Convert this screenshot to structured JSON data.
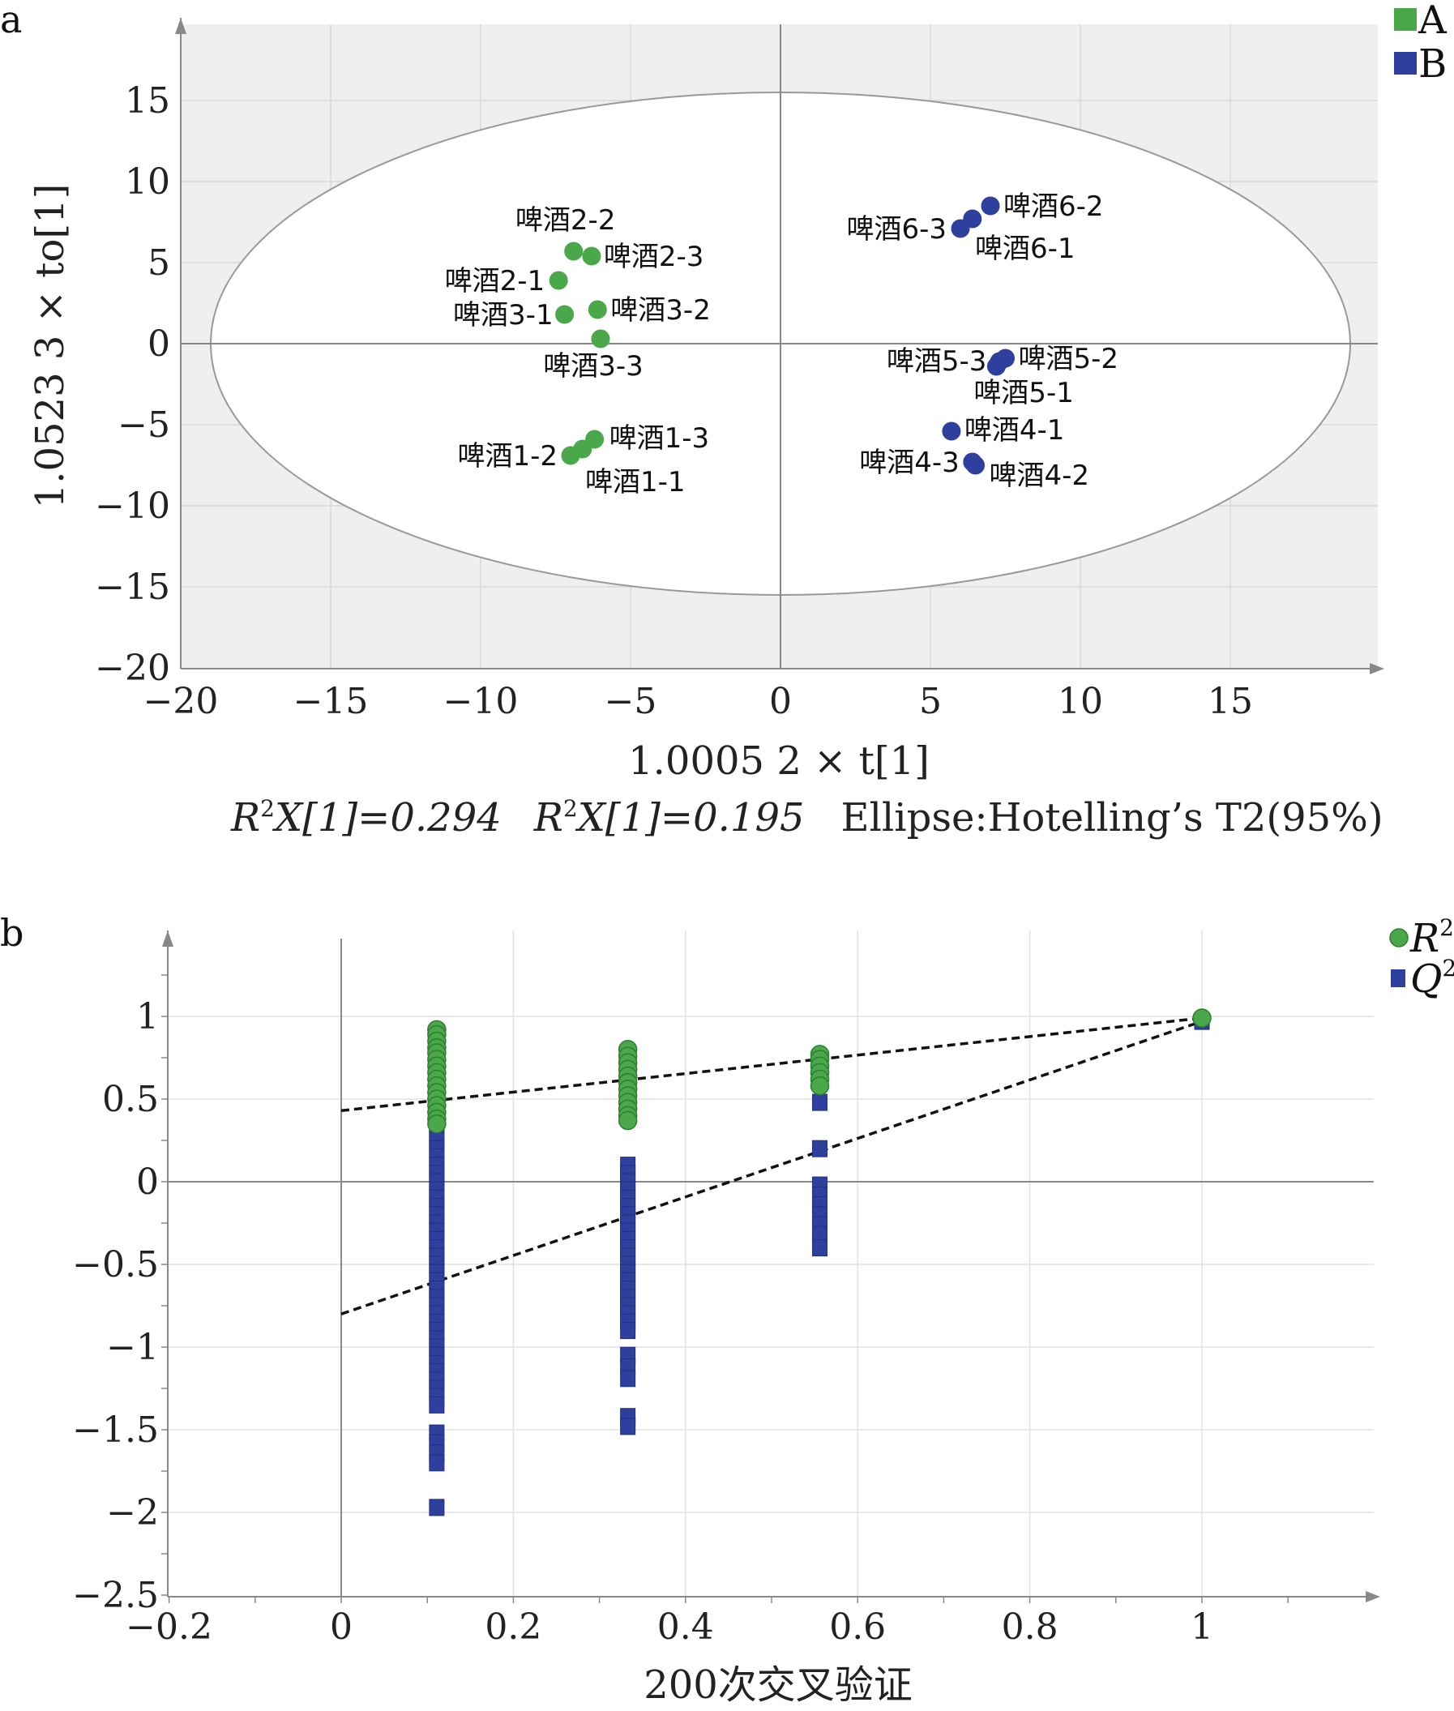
{
  "chart_data": [
    {
      "panel_label": "a",
      "type": "scatter",
      "xlabel": "1.0005 2 × t[1]",
      "ylabel": "1.0523 3 × to[1]",
      "footnote": {
        "r2x1_prefix": "R",
        "r2x1_sup": "2",
        "r2x1_rest": "X[1]=0.294",
        "r2x2_prefix": "R",
        "r2x2_sup": "2",
        "r2x2_rest": "X[1]=0.195",
        "ellipse": "Ellipse:Hotelling’s T2(95%)"
      },
      "xlim": [
        -20,
        20
      ],
      "ylim": [
        -20,
        20
      ],
      "xticks": [
        "−20",
        "−15",
        "−10",
        "−5",
        "0",
        "5",
        "10",
        "15"
      ],
      "yticks": [
        "15",
        "10",
        "5",
        "0",
        "−5",
        "−10",
        "−15",
        "−20"
      ],
      "grid": true,
      "legend_position": "top-right",
      "ellipse": {
        "center": [
          0,
          0
        ],
        "semi_axes": [
          19,
          15.5
        ],
        "label": "Hotelling's T2 (95%)"
      },
      "series": [
        {
          "name": "A",
          "color": "#4aa84a",
          "points": [
            {
              "label": "啤酒2-2",
              "x": -6.9,
              "y": 5.7
            },
            {
              "label": "啤酒2-3",
              "x": -6.3,
              "y": 5.4
            },
            {
              "label": "啤酒2-1",
              "x": -7.4,
              "y": 3.9
            },
            {
              "label": "啤酒3-1",
              "x": -7.2,
              "y": 1.8
            },
            {
              "label": "啤酒3-2",
              "x": -6.1,
              "y": 2.1
            },
            {
              "label": "啤酒3-3",
              "x": -6.0,
              "y": 0.3
            },
            {
              "label": "啤酒1-3",
              "x": -6.2,
              "y": -5.9
            },
            {
              "label": "啤酒1-2",
              "x": -7.0,
              "y": -6.9
            },
            {
              "label": "啤酒1-1",
              "x": -6.6,
              "y": -6.5
            }
          ]
        },
        {
          "name": "B",
          "color": "#2e3f9e",
          "points": [
            {
              "label": "啤酒6-2",
              "x": 7.0,
              "y": 8.5
            },
            {
              "label": "啤酒6-3",
              "x": 6.0,
              "y": 7.1
            },
            {
              "label": "啤酒6-1",
              "x": 6.4,
              "y": 7.7
            },
            {
              "label": "啤酒5-3",
              "x": 7.2,
              "y": -1.4
            },
            {
              "label": "啤酒5-2",
              "x": 7.5,
              "y": -0.9
            },
            {
              "label": "啤酒5-1",
              "x": 7.3,
              "y": -1.1
            },
            {
              "label": "啤酒4-1",
              "x": 5.7,
              "y": -5.4
            },
            {
              "label": "啤酒4-3",
              "x": 6.4,
              "y": -7.3
            },
            {
              "label": "啤酒4-2",
              "x": 6.5,
              "y": -7.5
            }
          ]
        }
      ]
    },
    {
      "panel_label": "b",
      "type": "scatter",
      "xlabel": "200次交叉验证",
      "ylabel": "",
      "xlim": [
        -0.2,
        1.2
      ],
      "ylim": [
        -2.5,
        1.5
      ],
      "xticks": [
        "−0.2",
        "0",
        "0.2",
        "0.4",
        "0.6",
        "0.8",
        "1"
      ],
      "yticks": [
        "1",
        "0.5",
        "0",
        "−0.5",
        "−1",
        "−1.5",
        "−2",
        "−2.5"
      ],
      "grid": true,
      "legend_position": "top-right",
      "legend": [
        {
          "symbol": "R",
          "sup": "2",
          "color": "#4aa84a",
          "marker": "circle"
        },
        {
          "symbol": "Q",
          "sup": "2",
          "color": "#2e3f9e",
          "marker": "square"
        }
      ],
      "regression_lines": [
        {
          "series": "R2",
          "intercept": 0.43,
          "x": [
            0,
            1
          ],
          "y": [
            0.43,
            0.99
          ]
        },
        {
          "series": "Q2",
          "intercept": -0.8,
          "x": [
            0,
            1
          ],
          "y": [
            -0.8,
            0.97
          ]
        }
      ],
      "series": [
        {
          "name": "R2",
          "color": "#4aa84a",
          "marker": "circle",
          "points": [
            {
              "x": 0.111,
              "y": 0.92
            },
            {
              "x": 0.111,
              "y": 0.89
            },
            {
              "x": 0.111,
              "y": 0.85
            },
            {
              "x": 0.111,
              "y": 0.81
            },
            {
              "x": 0.111,
              "y": 0.78
            },
            {
              "x": 0.111,
              "y": 0.74
            },
            {
              "x": 0.111,
              "y": 0.7
            },
            {
              "x": 0.111,
              "y": 0.66
            },
            {
              "x": 0.111,
              "y": 0.62
            },
            {
              "x": 0.111,
              "y": 0.58
            },
            {
              "x": 0.111,
              "y": 0.54
            },
            {
              "x": 0.111,
              "y": 0.5
            },
            {
              "x": 0.111,
              "y": 0.46
            },
            {
              "x": 0.111,
              "y": 0.42
            },
            {
              "x": 0.111,
              "y": 0.38
            },
            {
              "x": 0.111,
              "y": 0.35
            },
            {
              "x": 0.333,
              "y": 0.8
            },
            {
              "x": 0.333,
              "y": 0.76
            },
            {
              "x": 0.333,
              "y": 0.72
            },
            {
              "x": 0.333,
              "y": 0.68
            },
            {
              "x": 0.333,
              "y": 0.64
            },
            {
              "x": 0.333,
              "y": 0.6
            },
            {
              "x": 0.333,
              "y": 0.56
            },
            {
              "x": 0.333,
              "y": 0.52
            },
            {
              "x": 0.333,
              "y": 0.48
            },
            {
              "x": 0.333,
              "y": 0.44
            },
            {
              "x": 0.333,
              "y": 0.4
            },
            {
              "x": 0.333,
              "y": 0.37
            },
            {
              "x": 0.556,
              "y": 0.77
            },
            {
              "x": 0.556,
              "y": 0.74
            },
            {
              "x": 0.556,
              "y": 0.7
            },
            {
              "x": 0.556,
              "y": 0.66
            },
            {
              "x": 0.556,
              "y": 0.62
            },
            {
              "x": 0.556,
              "y": 0.58
            },
            {
              "x": 1.0,
              "y": 0.99
            }
          ]
        },
        {
          "name": "Q2",
          "color": "#2e3f9e",
          "marker": "square",
          "points": [
            {
              "x": 0.111,
              "y": 0.55
            },
            {
              "x": 0.111,
              "y": 0.5
            },
            {
              "x": 0.111,
              "y": 0.45
            },
            {
              "x": 0.111,
              "y": 0.4
            },
            {
              "x": 0.111,
              "y": 0.35
            },
            {
              "x": 0.111,
              "y": 0.3
            },
            {
              "x": 0.111,
              "y": 0.25
            },
            {
              "x": 0.111,
              "y": 0.2
            },
            {
              "x": 0.111,
              "y": 0.15
            },
            {
              "x": 0.111,
              "y": 0.1
            },
            {
              "x": 0.111,
              "y": 0.05
            },
            {
              "x": 0.111,
              "y": 0.0
            },
            {
              "x": 0.111,
              "y": -0.05
            },
            {
              "x": 0.111,
              "y": -0.1
            },
            {
              "x": 0.111,
              "y": -0.15
            },
            {
              "x": 0.111,
              "y": -0.2
            },
            {
              "x": 0.111,
              "y": -0.25
            },
            {
              "x": 0.111,
              "y": -0.3
            },
            {
              "x": 0.111,
              "y": -0.35
            },
            {
              "x": 0.111,
              "y": -0.4
            },
            {
              "x": 0.111,
              "y": -0.45
            },
            {
              "x": 0.111,
              "y": -0.5
            },
            {
              "x": 0.111,
              "y": -0.55
            },
            {
              "x": 0.111,
              "y": -0.6
            },
            {
              "x": 0.111,
              "y": -0.65
            },
            {
              "x": 0.111,
              "y": -0.7
            },
            {
              "x": 0.111,
              "y": -0.75
            },
            {
              "x": 0.111,
              "y": -0.8
            },
            {
              "x": 0.111,
              "y": -0.85
            },
            {
              "x": 0.111,
              "y": -0.9
            },
            {
              "x": 0.111,
              "y": -0.95
            },
            {
              "x": 0.111,
              "y": -1.0
            },
            {
              "x": 0.111,
              "y": -1.05
            },
            {
              "x": 0.111,
              "y": -1.1
            },
            {
              "x": 0.111,
              "y": -1.15
            },
            {
              "x": 0.111,
              "y": -1.2
            },
            {
              "x": 0.111,
              "y": -1.25
            },
            {
              "x": 0.111,
              "y": -1.3
            },
            {
              "x": 0.111,
              "y": -1.35
            },
            {
              "x": 0.111,
              "y": -1.52
            },
            {
              "x": 0.111,
              "y": -1.58
            },
            {
              "x": 0.111,
              "y": -1.64
            },
            {
              "x": 0.111,
              "y": -1.7
            },
            {
              "x": 0.111,
              "y": -1.97
            },
            {
              "x": 0.333,
              "y": 0.1
            },
            {
              "x": 0.333,
              "y": 0.05
            },
            {
              "x": 0.333,
              "y": 0.0
            },
            {
              "x": 0.333,
              "y": -0.05
            },
            {
              "x": 0.333,
              "y": -0.1
            },
            {
              "x": 0.333,
              "y": -0.15
            },
            {
              "x": 0.333,
              "y": -0.2
            },
            {
              "x": 0.333,
              "y": -0.25
            },
            {
              "x": 0.333,
              "y": -0.3
            },
            {
              "x": 0.333,
              "y": -0.35
            },
            {
              "x": 0.333,
              "y": -0.4
            },
            {
              "x": 0.333,
              "y": -0.45
            },
            {
              "x": 0.333,
              "y": -0.5
            },
            {
              "x": 0.333,
              "y": -0.55
            },
            {
              "x": 0.333,
              "y": -0.6
            },
            {
              "x": 0.333,
              "y": -0.65
            },
            {
              "x": 0.333,
              "y": -0.7
            },
            {
              "x": 0.333,
              "y": -0.75
            },
            {
              "x": 0.333,
              "y": -0.8
            },
            {
              "x": 0.333,
              "y": -0.85
            },
            {
              "x": 0.333,
              "y": -0.9
            },
            {
              "x": 0.333,
              "y": -1.05
            },
            {
              "x": 0.333,
              "y": -1.12
            },
            {
              "x": 0.333,
              "y": -1.19
            },
            {
              "x": 0.333,
              "y": -1.42
            },
            {
              "x": 0.333,
              "y": -1.48
            },
            {
              "x": 0.556,
              "y": 0.48
            },
            {
              "x": 0.556,
              "y": 0.2
            },
            {
              "x": 0.556,
              "y": -0.02
            },
            {
              "x": 0.556,
              "y": -0.08
            },
            {
              "x": 0.556,
              "y": -0.14
            },
            {
              "x": 0.556,
              "y": -0.2
            },
            {
              "x": 0.556,
              "y": -0.26
            },
            {
              "x": 0.556,
              "y": -0.32
            },
            {
              "x": 0.556,
              "y": -0.4
            },
            {
              "x": 1.0,
              "y": 0.97
            }
          ]
        }
      ]
    }
  ]
}
